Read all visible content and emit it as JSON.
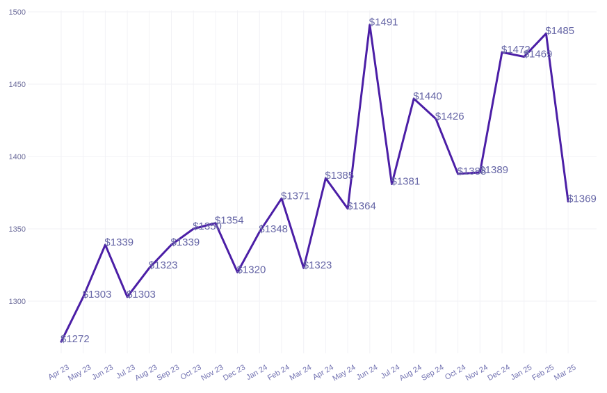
{
  "chart_data": {
    "type": "line",
    "title": "",
    "xlabel": "",
    "ylabel": "",
    "categories": [
      "Apr 23",
      "May 23",
      "Jun 23",
      "Jul 23",
      "Aug 23",
      "Sep 23",
      "Oct 23",
      "Nov 23",
      "Dec 23",
      "Jan 24",
      "Feb 24",
      "Mar 24",
      "Apr 24",
      "May 24",
      "Jun 24",
      "Jul 24",
      "Aug 24",
      "Sep 24",
      "Oct 24",
      "Nov 24",
      "Dec 24",
      "Jan 25",
      "Feb 25",
      "Mar 25"
    ],
    "values": [
      1272,
      1303,
      1339,
      1303,
      1323,
      1339,
      1350,
      1354,
      1320,
      1348,
      1371,
      1323,
      1385,
      1364,
      1491,
      1381,
      1440,
      1426,
      1388,
      1389,
      1472,
      1469,
      1485,
      1369
    ],
    "data_labels": [
      "$1272",
      "$1303",
      "$1339",
      "$1303",
      "$1323",
      "$1339",
      "$1350",
      "$1354",
      "$1320",
      "$1348",
      "$1371",
      "$1323",
      "$1385",
      "$1364",
      "$1491",
      "$1381",
      "$1440",
      "$1426",
      "$1388",
      "$1389",
      "$1472",
      "$1469",
      "$1485",
      "$1369"
    ],
    "ylim": [
      1250,
      1500
    ],
    "yticks": [
      1300,
      1350,
      1400,
      1450,
      1500
    ],
    "ytick_labels": [
      "1300",
      "1350",
      "1400",
      "1450",
      "1500"
    ],
    "grid": true,
    "line_color": "#4b1ea6",
    "label_color": "#6666a6"
  }
}
